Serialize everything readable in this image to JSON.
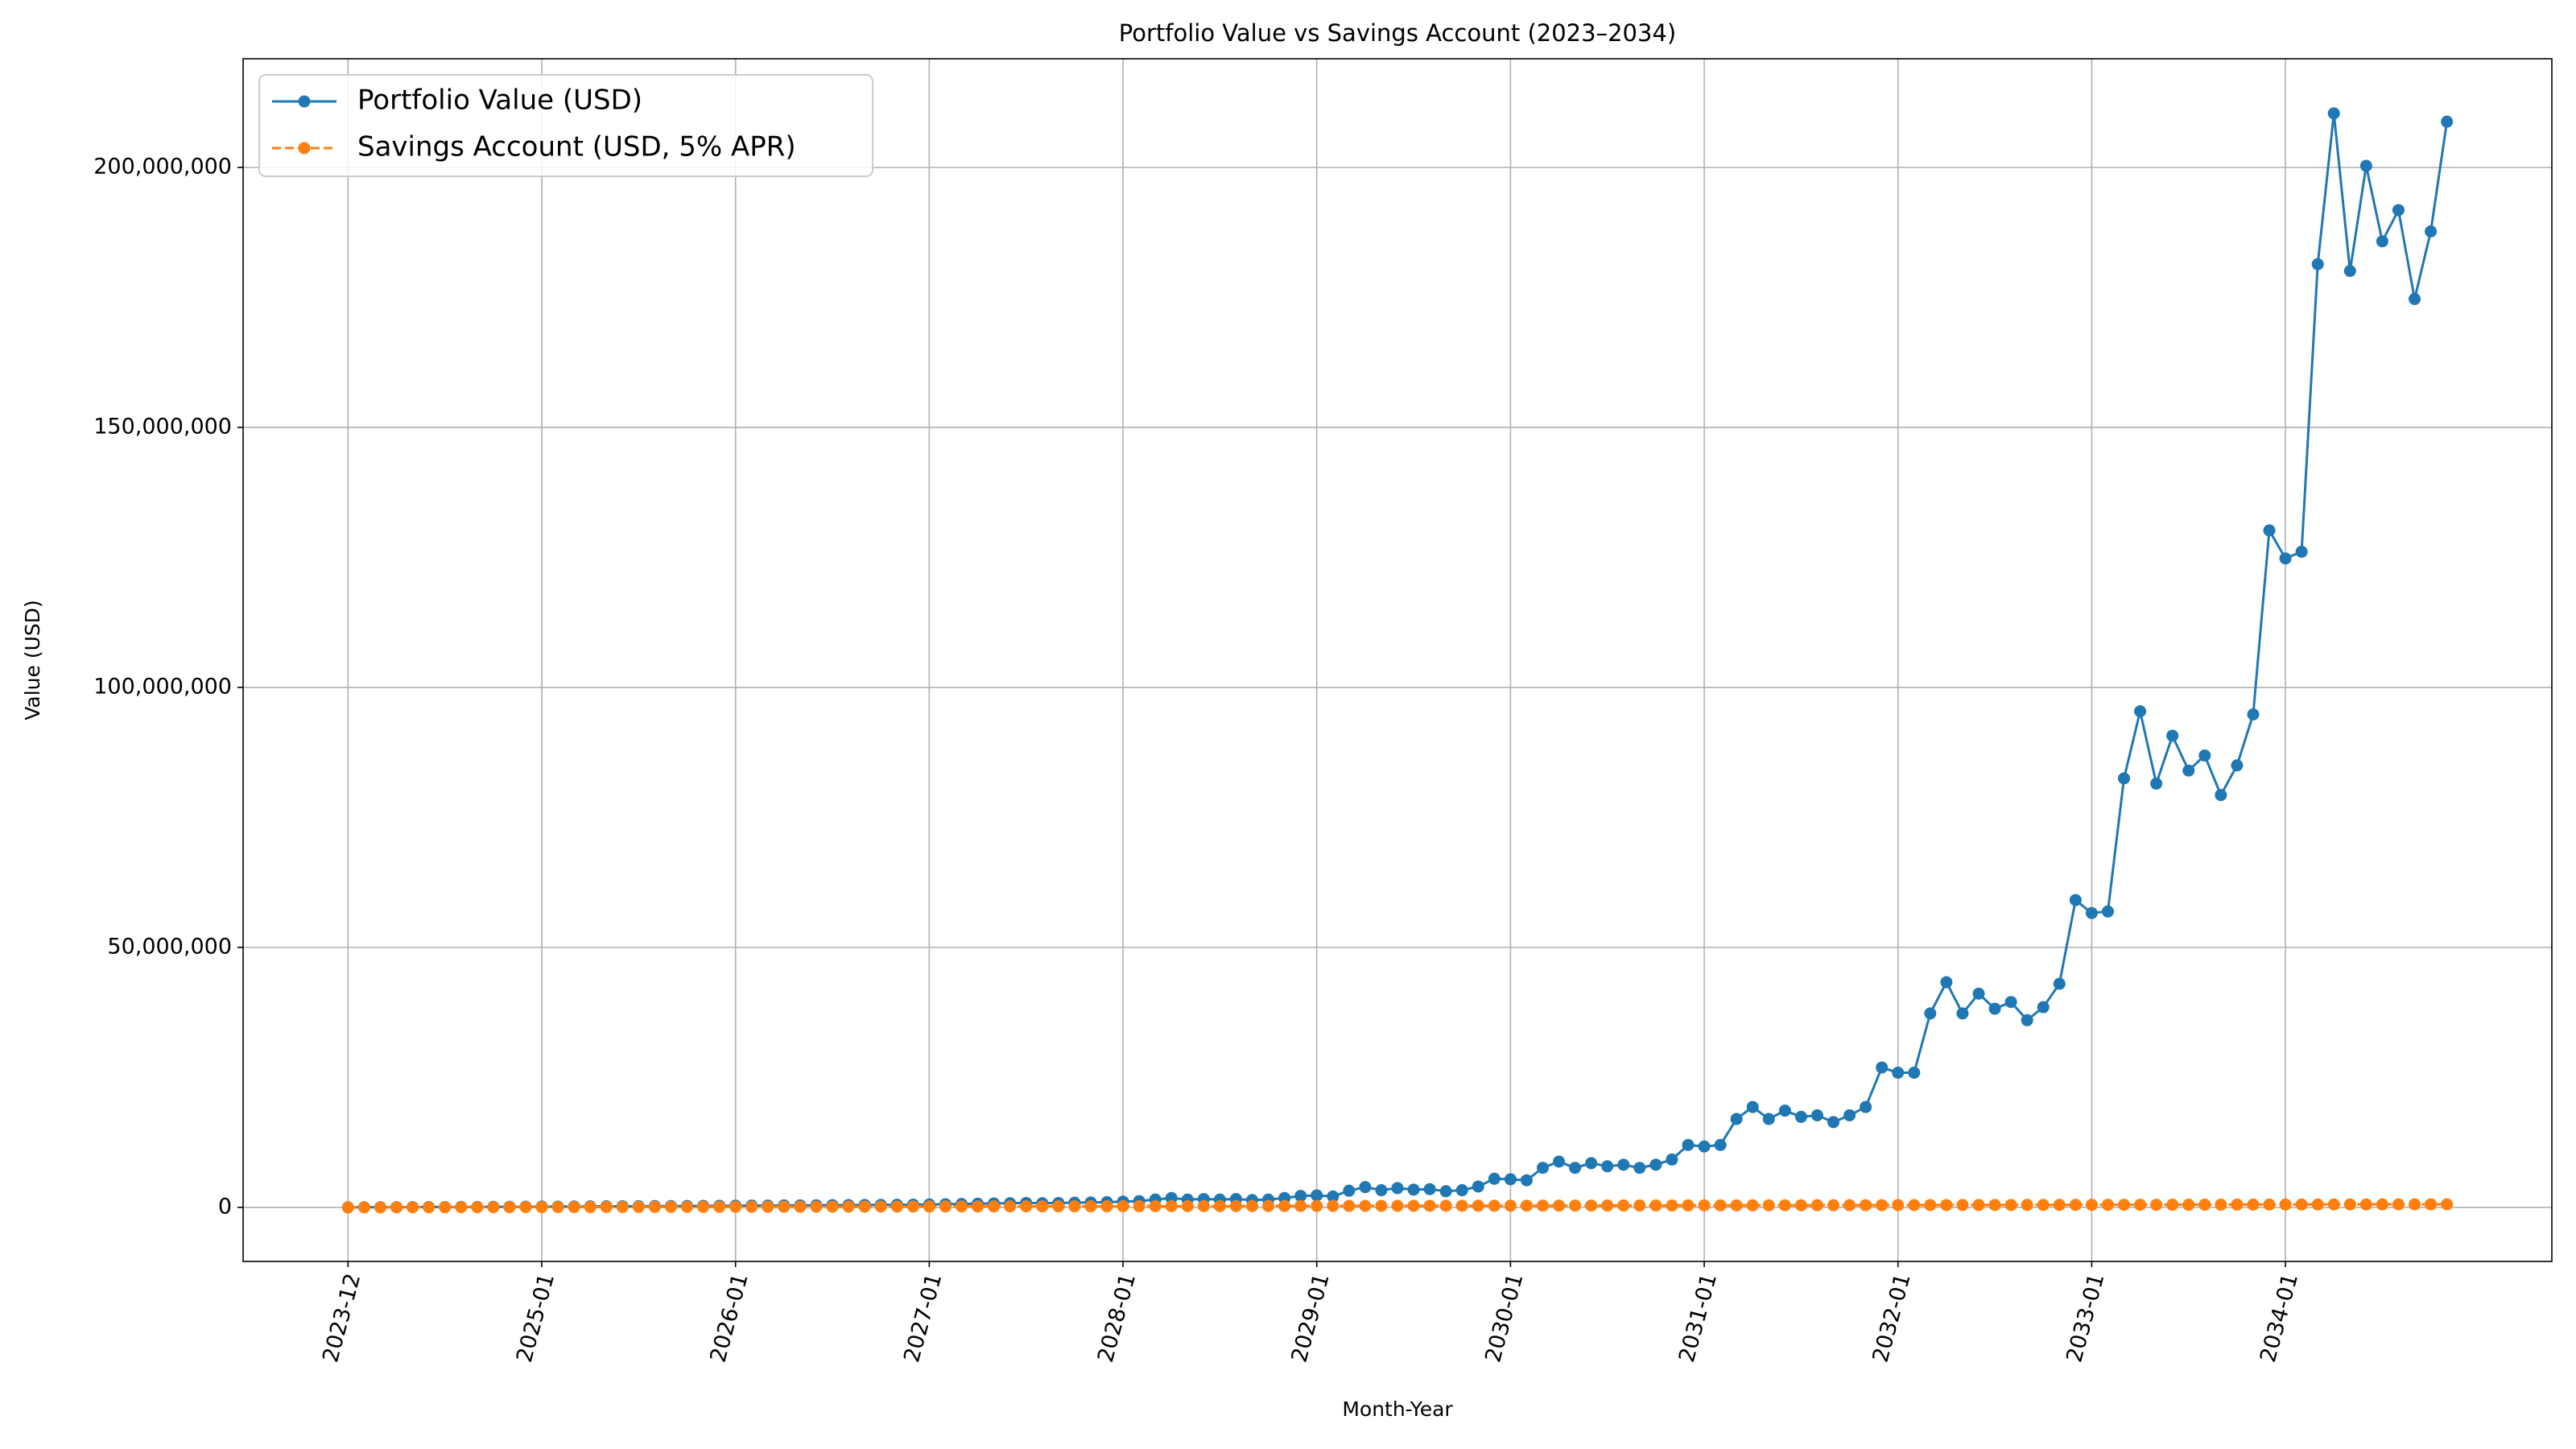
{
  "chart_data": {
    "type": "line",
    "title": "Portfolio Value vs Savings Account (2023–2034)",
    "x_label": "Month-Year",
    "y_label": "Value (USD)",
    "categories": [
      "2023-12",
      null,
      null,
      null,
      null,
      null,
      null,
      null,
      null,
      null,
      null,
      null,
      "2025-01",
      null,
      null,
      null,
      null,
      null,
      null,
      null,
      null,
      null,
      null,
      null,
      "2026-01",
      null,
      null,
      null,
      null,
      null,
      null,
      null,
      null,
      null,
      null,
      null,
      "2027-01",
      null,
      null,
      null,
      null,
      null,
      null,
      null,
      null,
      null,
      null,
      null,
      "2028-01",
      null,
      null,
      null,
      null,
      null,
      null,
      null,
      null,
      null,
      null,
      null,
      "2029-01",
      null,
      null,
      null,
      null,
      null,
      null,
      null,
      null,
      null,
      null,
      null,
      "2030-01",
      null,
      null,
      null,
      null,
      null,
      null,
      null,
      null,
      null,
      null,
      null,
      "2031-01",
      null,
      null,
      null,
      null,
      null,
      null,
      null,
      null,
      null,
      null,
      null,
      "2032-01",
      null,
      null,
      null,
      null,
      null,
      null,
      null,
      null,
      null,
      null,
      null,
      "2033-01",
      null,
      null,
      null,
      null,
      null,
      null,
      null,
      null,
      null,
      null,
      null,
      "2034-01",
      null,
      null,
      null,
      null,
      null,
      null,
      null,
      null,
      null,
      null
    ],
    "series": [
      {
        "name": "Portfolio Value (USD)",
        "color": "#1f77b4",
        "linestyle": "solid",
        "values": [
          10000,
          20000,
          30000,
          40000,
          50000,
          60000,
          70000,
          80000,
          90000,
          100000,
          110000,
          120000,
          140000,
          150000,
          170000,
          180000,
          200000,
          210000,
          220000,
          240000,
          250000,
          270000,
          280000,
          300000,
          320000,
          340000,
          350000,
          370000,
          380000,
          400000,
          420000,
          440000,
          450000,
          470000,
          500000,
          520000,
          550000,
          600000,
          650000,
          700000,
          750000,
          800000,
          850000,
          800000,
          850000,
          900000,
          950000,
          1000000,
          1100000,
          1200000,
          1500000,
          1800000,
          1500000,
          1600000,
          1500000,
          1600000,
          1400000,
          1500000,
          1800000,
          2200000,
          2300000,
          2100000,
          3200000,
          3900000,
          3300000,
          3700000,
          3400000,
          3500000,
          3100000,
          3300000,
          4000000,
          5500000,
          5400000,
          5200000,
          7600000,
          8800000,
          7600000,
          8500000,
          7900000,
          8200000,
          7600000,
          8200000,
          9200000,
          12000000,
          11700000,
          12000000,
          17000000,
          19300000,
          17000000,
          18600000,
          17400000,
          17700000,
          16400000,
          17700000,
          19300000,
          26900000,
          25900000,
          25900000,
          37300000,
          43300000,
          37300000,
          41100000,
          38200000,
          39500000,
          36000000,
          38500000,
          43000000,
          59100000,
          56600000,
          56900000,
          82500000,
          95400000,
          81500000,
          90700000,
          84000000,
          86900000,
          79300000,
          85000000,
          94800000,
          130200000,
          124800000,
          126100000,
          181400000,
          210400000,
          180100000,
          200300000,
          185800000,
          191800000,
          174700000,
          187700000,
          208800000
        ]
      },
      {
        "name": "Savings Account (USD, 5% APR)",
        "color": "#ff7f0e",
        "linestyle": "dashed",
        "values": [
          0,
          4500,
          9000,
          13500,
          18000,
          22500,
          27000,
          31500,
          36000,
          40500,
          45000,
          49500,
          54000,
          58500,
          63000,
          67500,
          72000,
          76500,
          81000,
          85500,
          90000,
          94500,
          99000,
          103500,
          108000,
          112500,
          117000,
          121500,
          126000,
          130500,
          135000,
          139500,
          144000,
          148500,
          153000,
          157500,
          162000,
          166500,
          171000,
          175500,
          180000,
          184500,
          189000,
          193500,
          198000,
          202500,
          207000,
          211500,
          216000,
          220500,
          225000,
          229500,
          234000,
          238500,
          243000,
          247500,
          252000,
          256500,
          261000,
          265500,
          270000,
          274500,
          279000,
          283500,
          288000,
          292500,
          297000,
          301500,
          306000,
          310500,
          315000,
          319500,
          324000,
          328500,
          333000,
          337500,
          342000,
          346500,
          351000,
          355500,
          360000,
          364500,
          369000,
          373500,
          378000,
          382500,
          387000,
          391500,
          396000,
          400500,
          405000,
          409500,
          414000,
          418500,
          423000,
          427500,
          432000,
          436500,
          441000,
          445500,
          450000,
          454500,
          459000,
          463500,
          468000,
          472500,
          477000,
          481500,
          486000,
          490500,
          495000,
          499500,
          504000,
          508500,
          513000,
          517500,
          522000,
          526500,
          531000,
          535500,
          540000,
          544500,
          549000,
          553500,
          558000,
          562500,
          567000,
          571500,
          576000,
          580500,
          585000
        ]
      }
    ],
    "ylim": [
      -10400000,
      220900000
    ],
    "yticks": [
      0,
      {
        "value": 50000000,
        "label": "50,000,000"
      },
      {
        "value": 100000000,
        "label": "100,000,000"
      },
      {
        "value": 150000000,
        "label": "150,000,000"
      },
      {
        "value": 200000000,
        "label": "200,000,000"
      }
    ],
    "grid": true,
    "legend": "upper left",
    "markers": true
  }
}
